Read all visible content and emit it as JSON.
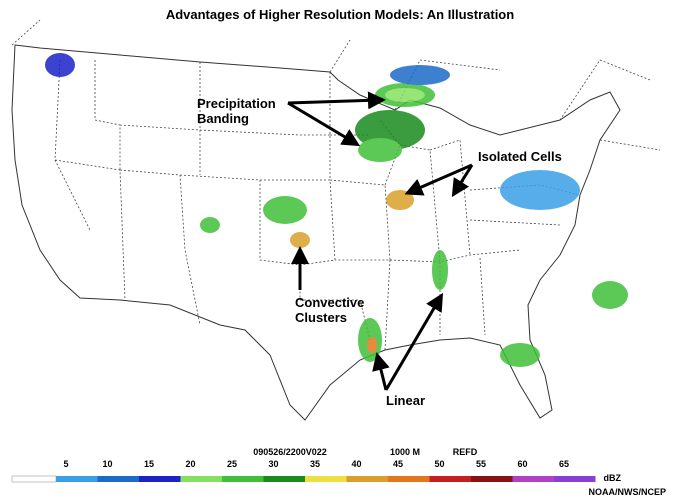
{
  "title": "Advantages of Higher Resolution Models: An Illustration",
  "annotations": [
    {
      "lines": [
        "Precipitation",
        "Banding"
      ]
    },
    {
      "lines": [
        "Isolated Cells"
      ]
    },
    {
      "lines": [
        "Convective",
        "Clusters"
      ]
    },
    {
      "lines": [
        "Linear"
      ]
    }
  ],
  "header": {
    "valid": "090526/2200V022",
    "level": "1000 M",
    "field": "REFD"
  },
  "colorbar": {
    "labels": [
      5,
      10,
      15,
      20,
      25,
      30,
      35,
      40,
      45,
      50,
      55,
      60,
      65
    ],
    "colors": [
      "#3a9fe6",
      "#1c6bc8",
      "#1a22c8",
      "#86e060",
      "#40c03a",
      "#1a8a1e",
      "#eee040",
      "#d8a02a",
      "#e4761e",
      "#c42020",
      "#8a1212",
      "#b040c4",
      "#8a3ed8"
    ],
    "unit": "dBZ"
  },
  "credit": "NOAA/NWS/NCEP"
}
